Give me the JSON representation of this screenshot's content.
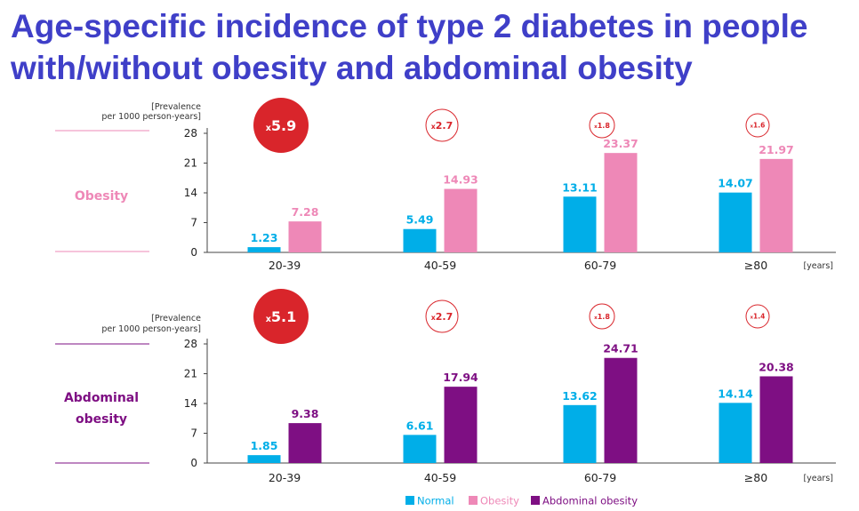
{
  "title": "Age-specific incidence of type 2 diabetes in people with/without obesity and abdominal obesity",
  "colors": {
    "title": "#3f3fc8",
    "normal": "#00aee8",
    "obesity": "#ee88b7",
    "abdominal": "#7e0f83",
    "ratio": "#d9252b"
  },
  "legend": {
    "normal": "Normal",
    "obesity": "Obesity",
    "abdominal": "Abdominal obesity"
  },
  "chart_data": [
    {
      "type": "bar",
      "group_label": "Obesity",
      "ylabel": "[Prevalence per 1000 person-years]",
      "ylabel_lines": [
        "[Prevalence",
        "per 1000 person-years]"
      ],
      "xunit": "[years]",
      "ylim": [
        0,
        28
      ],
      "yticks": [
        "0",
        "7",
        "14",
        "21",
        "28"
      ],
      "categories": [
        "20-39",
        "40-59",
        "60-79",
        "≥80"
      ],
      "ratios": [
        "5.9",
        "2.7",
        "1.8",
        "1.6"
      ],
      "series": [
        {
          "name": "Normal",
          "values": [
            1.23,
            5.49,
            13.11,
            14.07
          ],
          "labels": [
            "1.23",
            "5.49",
            "13.11",
            "14.07"
          ]
        },
        {
          "name": "Obesity",
          "values": [
            7.28,
            14.93,
            23.37,
            21.97
          ],
          "labels": [
            "7.28",
            "14.93",
            "23.37",
            "21.97"
          ]
        }
      ]
    },
    {
      "type": "bar",
      "group_label": "Abdominal obesity",
      "group_label_lines": [
        "Abdominal",
        "obesity"
      ],
      "ylabel": "[Prevalence per 1000 person-years]",
      "ylabel_lines": [
        "[Prevalence",
        "per 1000 person-years]"
      ],
      "xunit": "[years]",
      "ylim": [
        0,
        28
      ],
      "yticks": [
        "0",
        "7",
        "14",
        "21",
        "28"
      ],
      "categories": [
        "20-39",
        "40-59",
        "60-79",
        "≥80"
      ],
      "ratios": [
        "5.1",
        "2.7",
        "1.8",
        "1.4"
      ],
      "series": [
        {
          "name": "Normal",
          "values": [
            1.85,
            6.61,
            13.62,
            14.14
          ],
          "labels": [
            "1.85",
            "6.61",
            "13.62",
            "14.14"
          ]
        },
        {
          "name": "Abdominal obesity",
          "values": [
            9.38,
            17.94,
            24.71,
            20.38
          ],
          "labels": [
            "9.38",
            "17.94",
            "24.71",
            "20.38"
          ]
        }
      ]
    }
  ]
}
